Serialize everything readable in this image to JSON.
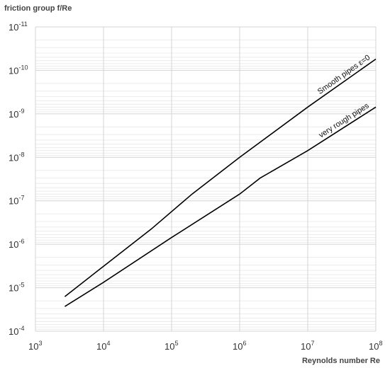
{
  "chart_data": {
    "type": "line",
    "title": "",
    "ylabel": "friction group f/Re",
    "xlabel": "Reynolds number Re",
    "x_scale": "log",
    "y_scale": "log",
    "xlim": [
      1000,
      100000000
    ],
    "ylim": [
      1e-11,
      0.0001
    ],
    "y_axis_inverted": true,
    "grid": true,
    "x_ticks": [
      {
        "base": "10",
        "exp": "3"
      },
      {
        "base": "10",
        "exp": "4"
      },
      {
        "base": "10",
        "exp": "5"
      },
      {
        "base": "10",
        "exp": "6"
      },
      {
        "base": "10",
        "exp": "7"
      },
      {
        "base": "10",
        "exp": "8"
      }
    ],
    "y_ticks": [
      {
        "base": "10",
        "exp": "-11"
      },
      {
        "base": "10",
        "exp": "-10"
      },
      {
        "base": "10",
        "exp": "-9"
      },
      {
        "base": "10",
        "exp": "-8"
      },
      {
        "base": "10",
        "exp": "-7"
      },
      {
        "base": "10",
        "exp": "-6"
      },
      {
        "base": "10",
        "exp": "-5"
      },
      {
        "base": "10",
        "exp": "-4"
      }
    ],
    "series": [
      {
        "name": "Smooth pipes ε=0",
        "color": "#000000",
        "x": [
          2700,
          10000,
          50000,
          200000,
          1000000,
          10000000,
          100000000
        ],
        "y": [
          1.6e-05,
          3.2e-06,
          4.5e-07,
          7e-08,
          1e-08,
          7e-10,
          5.5e-11
        ]
      },
      {
        "name": "very rough pipes",
        "color": "#000000",
        "x": [
          2700,
          10000,
          100000,
          1000000,
          2000000,
          10000000,
          100000000
        ],
        "y": [
          2.7e-05,
          7.5e-06,
          7e-07,
          7e-08,
          3e-08,
          7e-09,
          7e-10
        ]
      }
    ]
  }
}
